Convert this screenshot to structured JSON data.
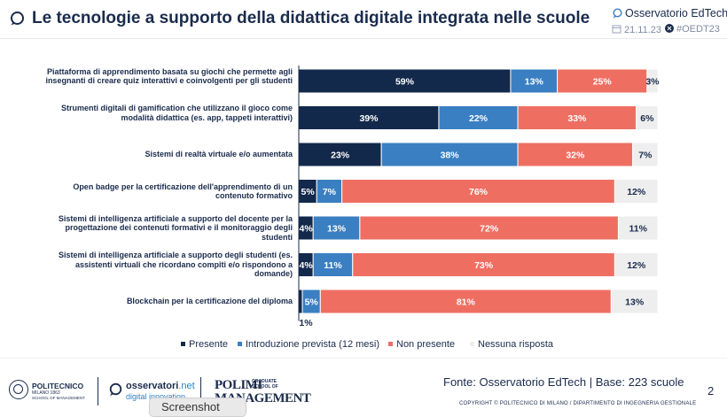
{
  "header": {
    "title": "Le tecnologie a supporto della didattica digitale integrata nelle scuole",
    "brand": "Osservatorio EdTech",
    "date": "21.11.23",
    "hashtag": "#OEDT23"
  },
  "colors": {
    "presente": "#13294b",
    "introduzione": "#3a7fc1",
    "non_presente": "#ee6f62",
    "nessuna": "#eeeeee",
    "text": "#1a2b4c"
  },
  "chart_data": {
    "type": "bar",
    "orientation": "horizontal",
    "stacked": true,
    "categories": [
      "Piattaforma di apprendimento basata su giochi che permette agli insegnanti di creare quiz interattivi e coinvolgenti per gli studenti",
      "Strumenti digitali di gamification che utilizzano il gioco come modalità didattica (es. app, tappeti interattivi)",
      "Sistemi di realtà virtuale e/o aumentata",
      "Open badge per la certificazione dell'apprendimento di un contenuto formativo",
      "Sistemi di intelligenza artificiale a supporto del docente per la progettazione dei contenuti formativi e il monitoraggio degli studenti",
      "Sistemi di intelligenza artificiale a supporto degli studenti (es. assistenti virtuali che ricordano compiti e/o rispondono a domande)",
      "Blockchain per la certificazione del diploma"
    ],
    "series": [
      {
        "name": "Presente",
        "values": [
          59,
          39,
          23,
          5,
          4,
          4,
          1
        ]
      },
      {
        "name": "Introduzione prevista (12 mesi)",
        "values": [
          13,
          22,
          38,
          7,
          13,
          11,
          5
        ]
      },
      {
        "name": "Non presente",
        "values": [
          25,
          33,
          32,
          76,
          72,
          73,
          81
        ]
      },
      {
        "name": "Nessuna risposta",
        "values": [
          3,
          6,
          7,
          12,
          11,
          12,
          13
        ]
      }
    ],
    "unit": "%",
    "xlim": [
      0,
      100
    ],
    "legend": "bottom"
  },
  "footer": {
    "source": "Fonte: Osservatorio EdTech | Base: 223 scuole",
    "copyright": "COPYRIGHT © POLITECNICO DI MILANO / DIPARTIMENTO DI INGEGNERIA GESTIONALE",
    "page": "2",
    "logo1_name": "POLITECNICO",
    "logo1_sub": "MILANO 1863",
    "logo1_sub2": "SCHOOL OF MANAGEMENT",
    "logo2_name": "osservatori",
    "logo2_net": ".net",
    "logo2_sub": "digital innovation",
    "logo3_line1": "POLIMI",
    "logo3_line2": "MANAGEMENT",
    "logo3_side1": "GRADUATE",
    "logo3_side2": "SCHOOL OF",
    "tooltip": "Screenshot"
  }
}
